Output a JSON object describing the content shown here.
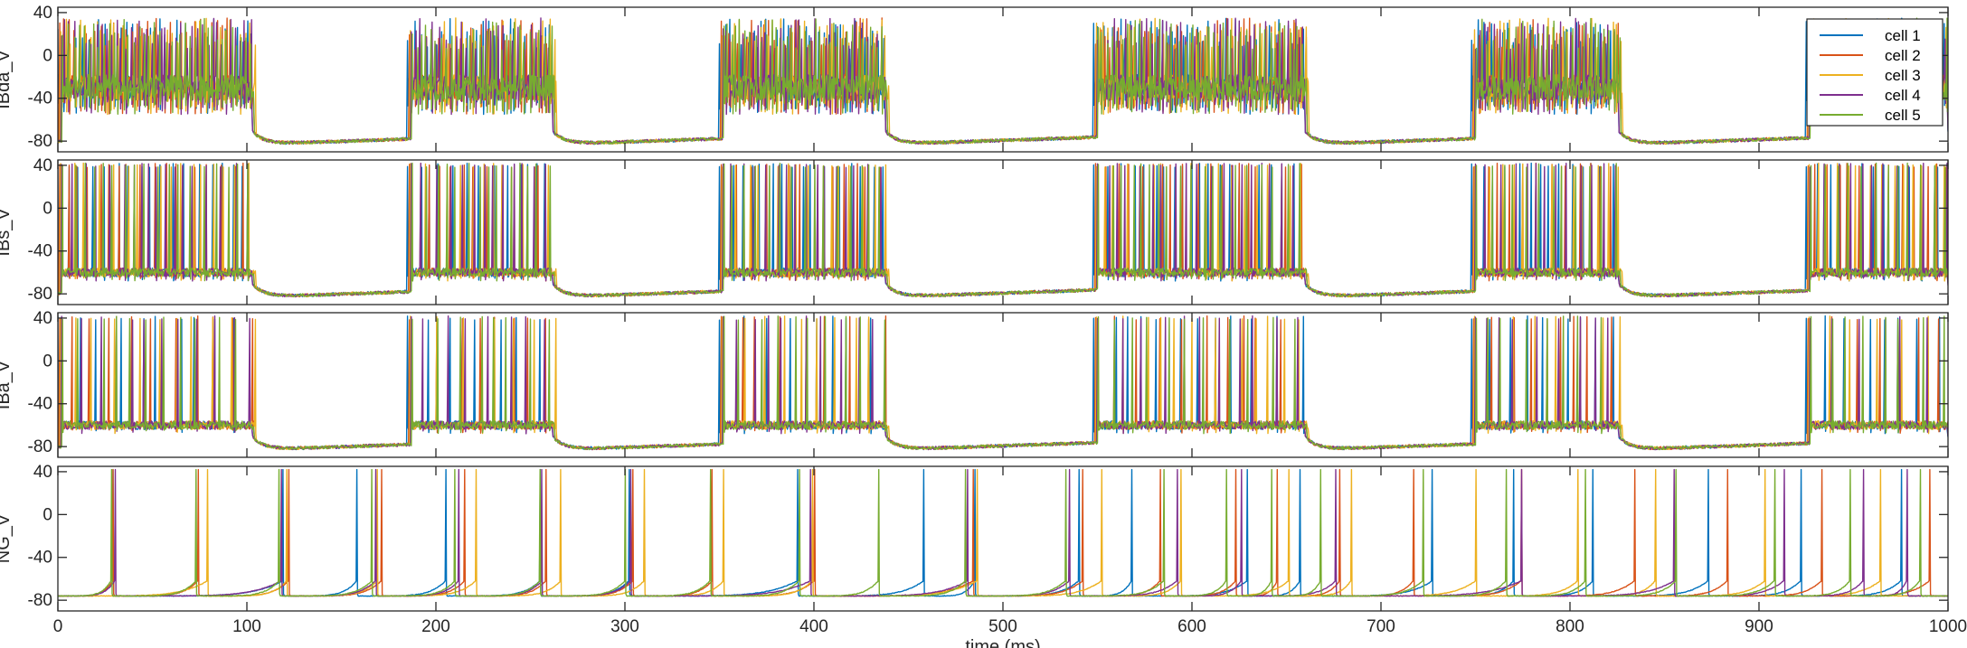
{
  "chart_data": [
    {
      "type": "line",
      "ylabel": "IBda_V",
      "xlim": [
        0,
        1000
      ],
      "ylim": [
        -90,
        45
      ],
      "yticks": [
        -80,
        -40,
        0,
        40
      ],
      "xticks": [
        0,
        100,
        200,
        300,
        400,
        500,
        600,
        700,
        800,
        900,
        1000
      ],
      "show_xtick_labels": false,
      "firing_style": "dense",
      "active_intervals": [
        [
          0,
          103
        ],
        [
          185,
          262
        ],
        [
          350,
          438
        ],
        [
          548,
          660
        ],
        [
          748,
          826
        ],
        [
          925,
          1000
        ]
      ],
      "series": [
        {
          "name": "cell 1",
          "color": "#0072BD"
        },
        {
          "name": "cell 2",
          "color": "#D95319"
        },
        {
          "name": "cell 3",
          "color": "#EDB120"
        },
        {
          "name": "cell 4",
          "color": "#7E2F8E"
        },
        {
          "name": "cell 5",
          "color": "#77AC30"
        }
      ],
      "legend": {
        "placement": "top-right",
        "entries": [
          "cell 1",
          "cell 2",
          "cell 3",
          "cell 4",
          "cell 5"
        ]
      }
    },
    {
      "type": "line",
      "ylabel": "IBs_V",
      "xlim": [
        0,
        1000
      ],
      "ylim": [
        -90,
        45
      ],
      "yticks": [
        -80,
        -40,
        0,
        40
      ],
      "xticks": [
        0,
        100,
        200,
        300,
        400,
        500,
        600,
        700,
        800,
        900,
        1000
      ],
      "show_xtick_labels": false,
      "firing_style": "regular",
      "active_intervals": [
        [
          0,
          103
        ],
        [
          185,
          262
        ],
        [
          350,
          438
        ],
        [
          548,
          660
        ],
        [
          748,
          826
        ],
        [
          925,
          1000
        ]
      ],
      "series": [
        {
          "name": "cell 1",
          "color": "#0072BD"
        },
        {
          "name": "cell 2",
          "color": "#D95319"
        },
        {
          "name": "cell 3",
          "color": "#EDB120"
        },
        {
          "name": "cell 4",
          "color": "#7E2F8E"
        },
        {
          "name": "cell 5",
          "color": "#77AC30"
        }
      ]
    },
    {
      "type": "line",
      "ylabel": "IBa_V",
      "xlim": [
        0,
        1000
      ],
      "ylim": [
        -90,
        45
      ],
      "yticks": [
        -80,
        -40,
        0,
        40
      ],
      "xticks": [
        0,
        100,
        200,
        300,
        400,
        500,
        600,
        700,
        800,
        900,
        1000
      ],
      "show_xtick_labels": false,
      "firing_style": "sparse",
      "active_intervals": [
        [
          0,
          103
        ],
        [
          185,
          262
        ],
        [
          350,
          438
        ],
        [
          548,
          660
        ],
        [
          748,
          826
        ],
        [
          925,
          1000
        ]
      ],
      "series": [
        {
          "name": "cell 1",
          "color": "#0072BD"
        },
        {
          "name": "cell 2",
          "color": "#D95319"
        },
        {
          "name": "cell 3",
          "color": "#EDB120"
        },
        {
          "name": "cell 4",
          "color": "#7E2F8E"
        },
        {
          "name": "cell 5",
          "color": "#77AC30"
        }
      ]
    },
    {
      "type": "line",
      "ylabel": "NG_V",
      "xlabel": "time (ms)",
      "xlim": [
        0,
        1000
      ],
      "ylim": [
        -90,
        45
      ],
      "yticks": [
        -80,
        -40,
        0,
        40
      ],
      "xticks": [
        0,
        100,
        200,
        300,
        400,
        500,
        600,
        700,
        800,
        900,
        1000
      ],
      "show_xtick_labels": true,
      "firing_style": "ramp",
      "series": [
        {
          "name": "cell 1",
          "color": "#0072BD",
          "spike_times": [
            29,
            119,
            158,
            205,
            255,
            302,
            391,
            458,
            485,
            540,
            568,
            629,
            657,
            727,
            770,
            812,
            873,
            922,
            975
          ]
        },
        {
          "name": "cell 2",
          "color": "#D95319",
          "spike_times": [
            29,
            74,
            122,
            171,
            215,
            258,
            304,
            346,
            400,
            484,
            542,
            583,
            623,
            645,
            678,
            717,
            774,
            834,
            883,
            933,
            990
          ]
        },
        {
          "name": "cell 3",
          "color": "#EDB120",
          "spike_times": [
            79,
            121,
            169,
            221,
            266,
            310,
            352,
            399,
            486,
            552,
            594,
            651,
            684,
            750,
            804,
            845,
            903,
            964
          ]
        },
        {
          "name": "cell 4",
          "color": "#7E2F8E",
          "spike_times": [
            30,
            118,
            168,
            212,
            256,
            303,
            398,
            481,
            535,
            592,
            626,
            676,
            774,
            855,
            913,
            955,
            978
          ]
        },
        {
          "name": "cell 5",
          "color": "#77AC30",
          "spike_times": [
            28,
            73,
            117,
            166,
            210,
            255,
            300,
            345,
            392,
            434,
            480,
            533,
            585,
            618,
            642,
            668,
            722,
            766,
            808,
            856,
            908,
            948,
            985
          ]
        }
      ]
    }
  ]
}
